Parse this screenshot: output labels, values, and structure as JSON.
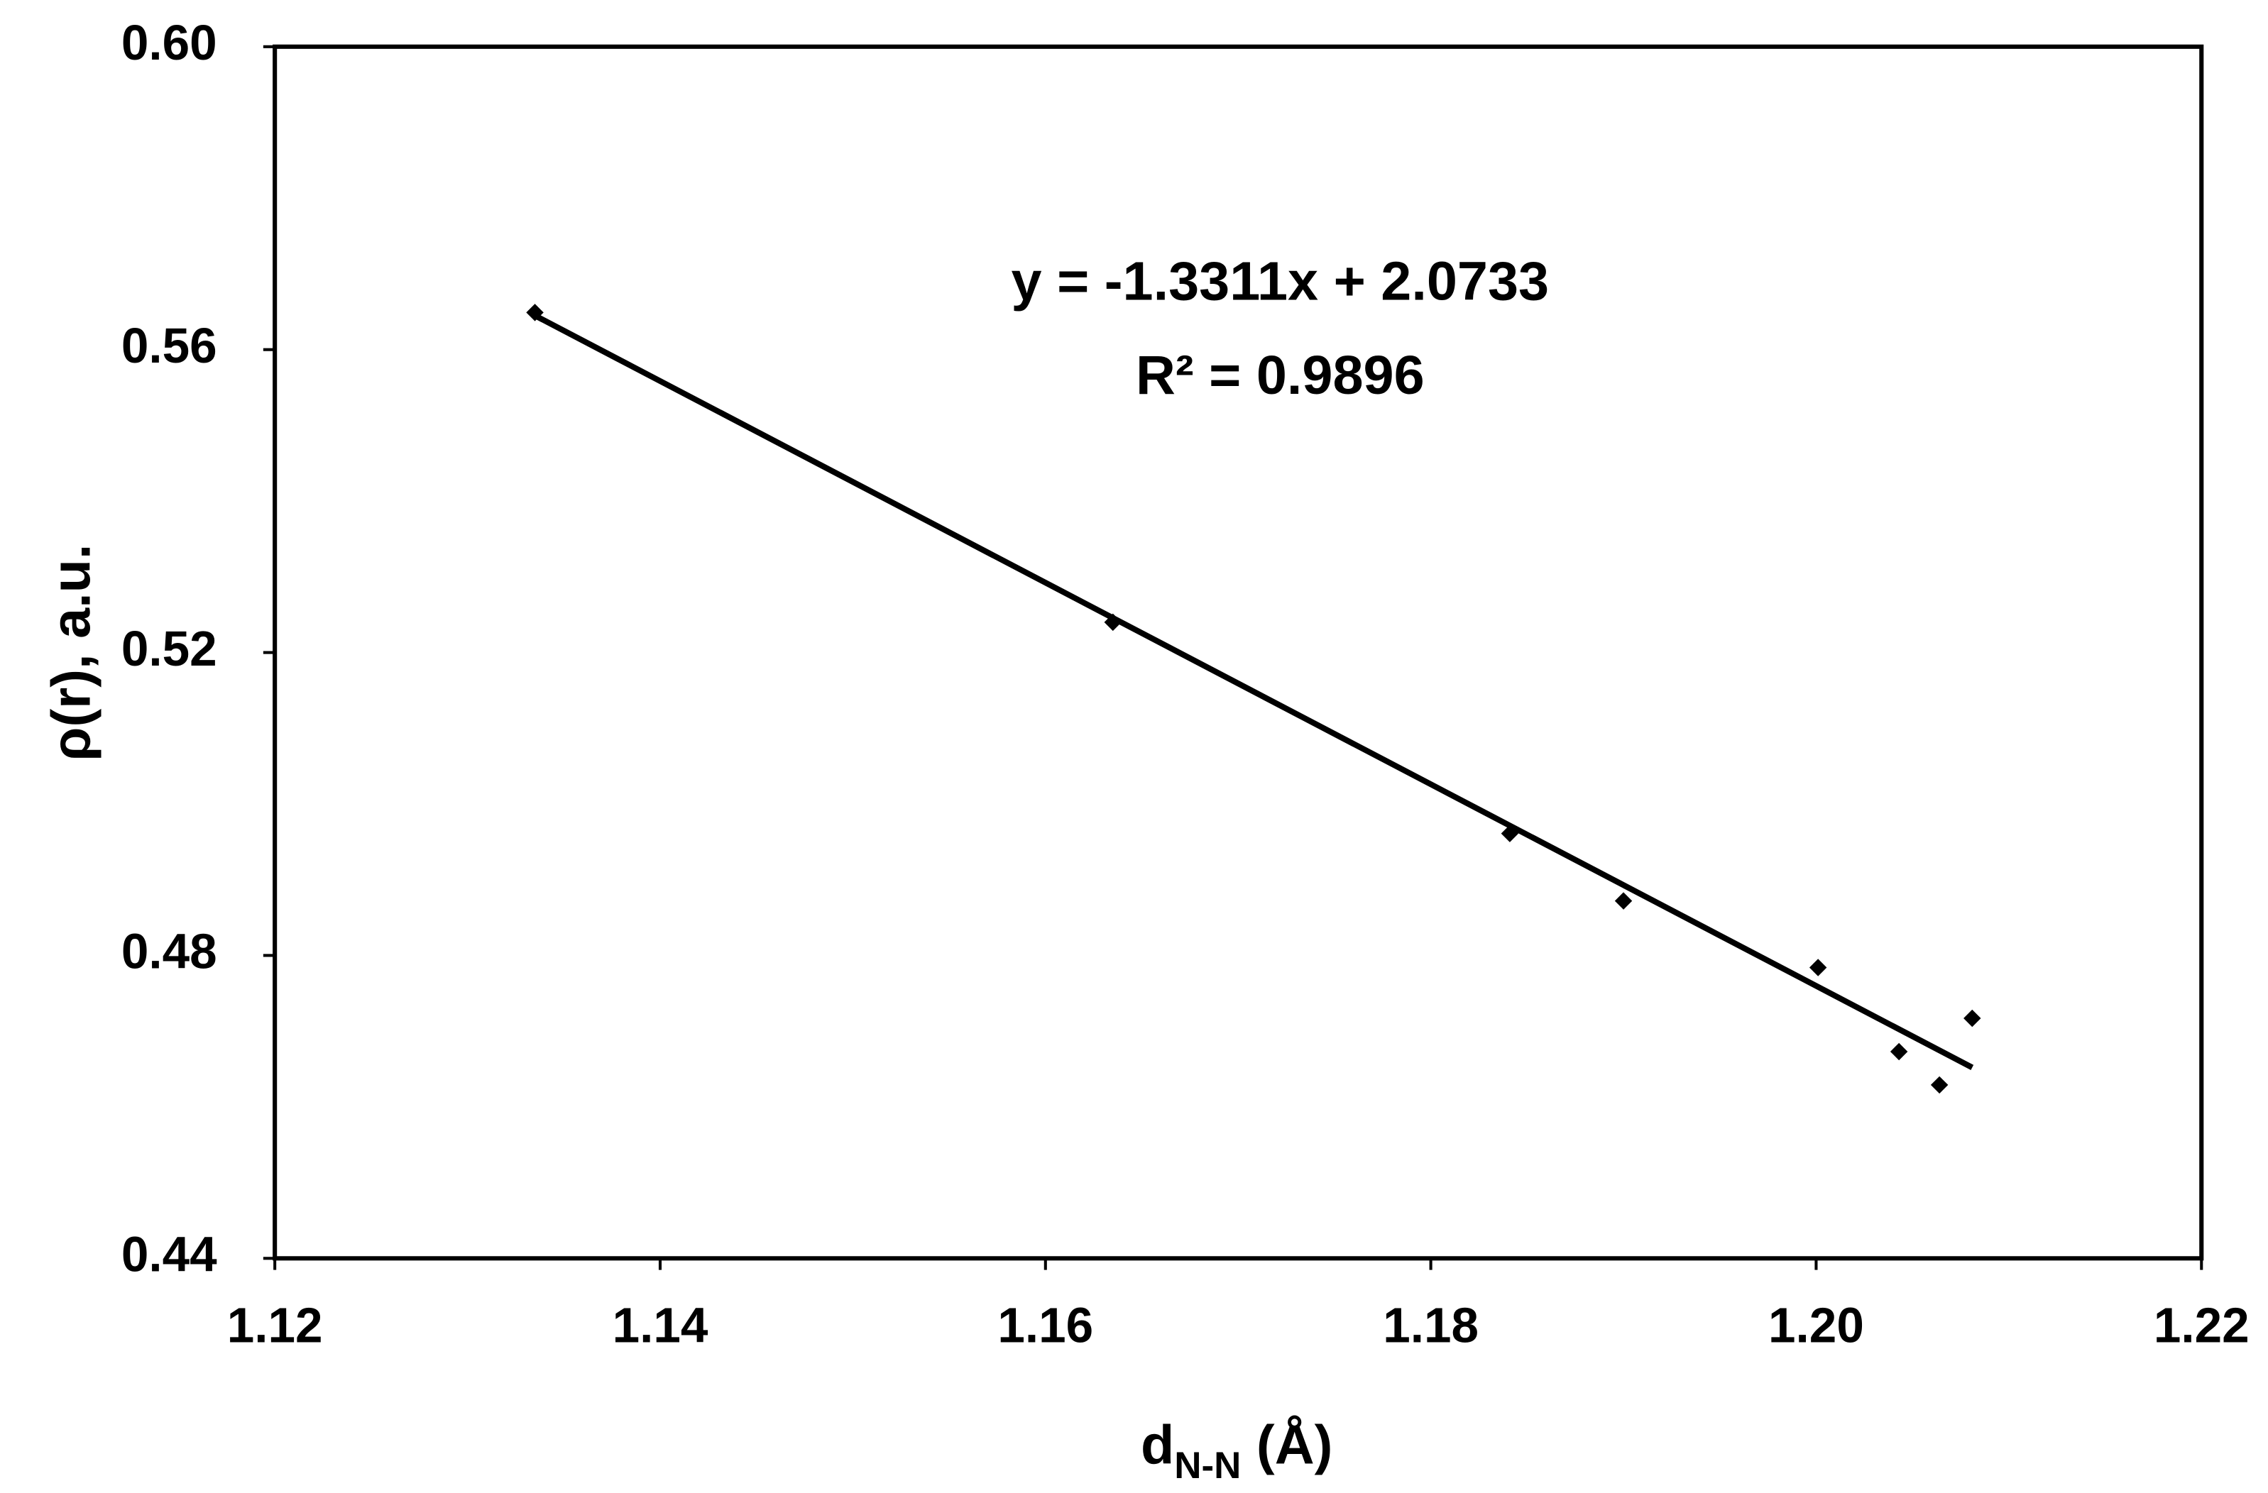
{
  "chart_data": {
    "type": "scatter",
    "x": [
      1.1335,
      1.1635,
      1.1841,
      1.19,
      1.2001,
      1.2043,
      1.2064,
      1.2081
    ],
    "values": [
      0.5649,
      0.524,
      0.4961,
      0.4872,
      0.4784,
      0.4673,
      0.4629,
      0.4717
    ],
    "color": "#000000",
    "xlim": [
      1.12,
      1.22
    ],
    "xticks": [
      1.12,
      1.14,
      1.16,
      1.18,
      {
        "value": 1.2,
        "label": "1.20"
      },
      1.22
    ],
    "ylim": [
      0.44,
      0.6
    ],
    "yticks": [
      0.44,
      0.48,
      0.52,
      0.56,
      {
        "value": 0.6,
        "label": "0.60"
      }
    ],
    "xlabel": "d",
    "xlabel_sub": "N-N",
    "xlabel_unit": " (Å)",
    "ylabel": "ρ(r), a.u.",
    "trendline": {
      "slope": -1.3311,
      "intercept": 2.0733,
      "equation": "y = -1.3311x + 2.0733",
      "r2": "R² = 0.9896"
    }
  }
}
